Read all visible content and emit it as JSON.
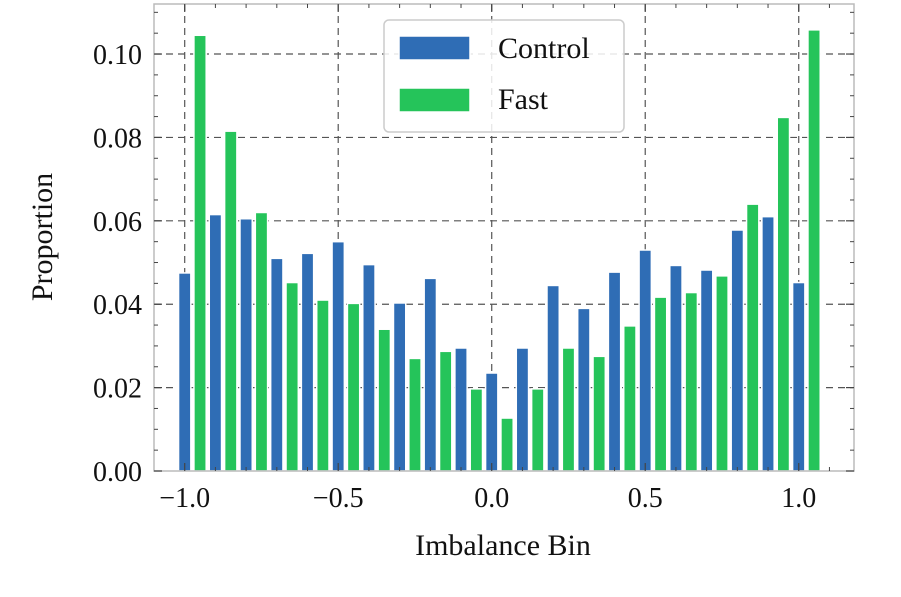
{
  "chart_data": {
    "type": "bar",
    "title": "",
    "xlabel": "Imbalance Bin",
    "ylabel": "Proportion",
    "xlim": [
      -1.1,
      1.18
    ],
    "ylim": [
      0.0,
      0.112
    ],
    "x_ticks": [
      {
        "value": -1.0,
        "label": "−1.0"
      },
      {
        "value": -0.5,
        "label": "−0.5"
      },
      {
        "value": 0.0,
        "label": "0.0"
      },
      {
        "value": 0.5,
        "label": "0.5"
      },
      {
        "value": 1.0,
        "label": "1.0"
      }
    ],
    "y_ticks": [
      {
        "value": 0.0,
        "label": "0.00"
      },
      {
        "value": 0.02,
        "label": "0.02"
      },
      {
        "value": 0.04,
        "label": "0.04"
      },
      {
        "value": 0.06,
        "label": "0.06"
      },
      {
        "value": 0.08,
        "label": "0.08"
      },
      {
        "value": 0.1,
        "label": "0.10"
      }
    ],
    "grid": true,
    "legend_position": "top-center",
    "bar_width": 0.04,
    "series": [
      {
        "name": "Control",
        "color": "#2f6db5",
        "x": [
          -1.0,
          -0.9,
          -0.8,
          -0.7,
          -0.6,
          -0.5,
          -0.4,
          -0.3,
          -0.2,
          -0.1,
          0.0,
          0.1,
          0.2,
          0.3,
          0.4,
          0.5,
          0.6,
          0.7,
          0.8,
          0.9,
          1.0
        ],
        "values": [
          0.0475,
          0.0615,
          0.0605,
          0.051,
          0.0522,
          0.055,
          0.0495,
          0.0403,
          0.0462,
          0.0295,
          0.0235,
          0.0295,
          0.0445,
          0.039,
          0.0477,
          0.053,
          0.0493,
          0.0482,
          0.0578,
          0.061,
          0.0452
        ]
      },
      {
        "name": "Fast",
        "color": "#25c45a",
        "x": [
          -0.95,
          -0.85,
          -0.75,
          -0.65,
          -0.55,
          -0.45,
          -0.35,
          -0.25,
          -0.15,
          -0.05,
          0.05,
          0.15,
          0.25,
          0.35,
          0.45,
          0.55,
          0.65,
          0.75,
          0.85,
          0.95,
          1.05
        ],
        "values": [
          0.1045,
          0.0815,
          0.062,
          0.0452,
          0.041,
          0.0402,
          0.034,
          0.027,
          0.0287,
          0.0197,
          0.0127,
          0.0197,
          0.0295,
          0.0275,
          0.0348,
          0.0417,
          0.0428,
          0.0468,
          0.064,
          0.0848,
          0.1058
        ]
      }
    ]
  }
}
